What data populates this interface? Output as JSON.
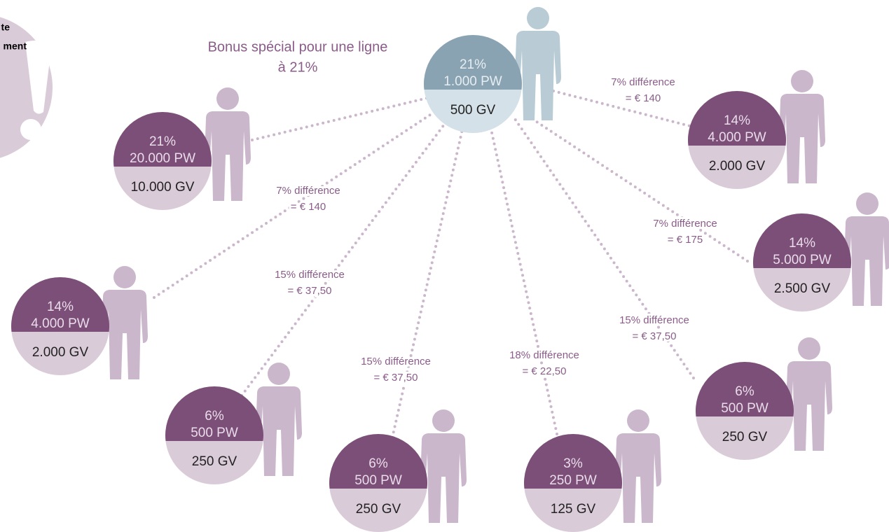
{
  "notice": [
    "te",
    "ment"
  ],
  "title": [
    "Bonus spécial pour une ligne",
    "à 21%"
  ],
  "nodes": [
    {
      "percent": "21%",
      "pw": "1.000 PW",
      "gv": "500 GV"
    },
    {
      "percent": "21%",
      "pw": "20.000 PW",
      "gv": "10.000 GV"
    },
    {
      "percent": "14%",
      "pw": "4.000 PW",
      "gv": "2.000 GV",
      "edge_label": [
        "7% différence",
        "= € 140"
      ]
    },
    {
      "percent": "14%",
      "pw": "5.000 PW",
      "gv": "2.500 GV",
      "edge_label": [
        "7% différence",
        "= € 175"
      ]
    },
    {
      "percent": "14%",
      "pw": "4.000 PW",
      "gv": "2.000 GV",
      "edge_label": [
        "7% différence",
        "= € 140"
      ]
    },
    {
      "percent": "6%",
      "pw": "500 PW",
      "gv": "250 GV",
      "edge_label": [
        "15% différence",
        "= € 37,50"
      ]
    },
    {
      "percent": "6%",
      "pw": "500 PW",
      "gv": "250 GV",
      "edge_label": [
        "15% différence",
        "= € 37,50"
      ]
    },
    {
      "percent": "3%",
      "pw": "250 PW",
      "gv": "125 GV",
      "edge_label": [
        "18% différence",
        "= € 22,50"
      ]
    },
    {
      "percent": "6%",
      "pw": "500 PW",
      "gv": "250 GV",
      "edge_label": [
        "15% différence",
        "= € 37,50"
      ]
    }
  ]
}
